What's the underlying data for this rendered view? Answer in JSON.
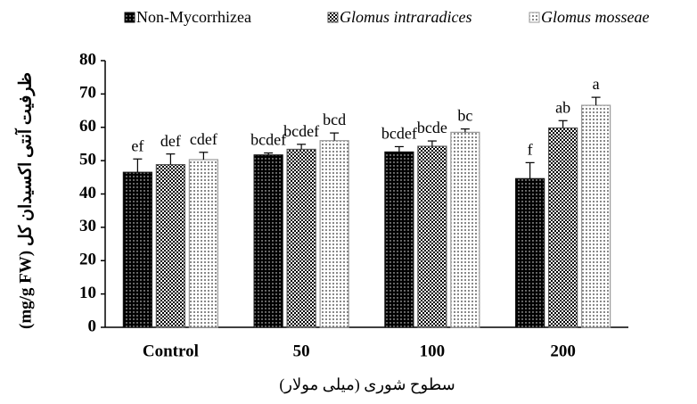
{
  "chart_data": {
    "type": "bar",
    "ylabel": "ظرفیت آنتی اکسیدان کل (mg/g FW)",
    "xlabel": "سطوح شوری (میلی مولار)",
    "categories": [
      "Control",
      "50",
      "100",
      "200"
    ],
    "series": [
      {
        "name": "Non-Mycorrhizea",
        "color": "#111111",
        "values": [
          46.5,
          51.7,
          52.6,
          44.6
        ],
        "errors": [
          4.0,
          0.6,
          1.6,
          4.8
        ],
        "letters": [
          "ef",
          "bcdef",
          "bcdef",
          "f"
        ]
      },
      {
        "name": "Glomus intraradices",
        "color": "#555555",
        "values": [
          48.8,
          53.4,
          54.3,
          59.8
        ],
        "errors": [
          3.2,
          1.5,
          1.6,
          2.2
        ],
        "letters": [
          "def",
          "bcdef",
          "bcde",
          "ab"
        ]
      },
      {
        "name": "Glomus mosseae",
        "color": "#999999",
        "values": [
          50.3,
          56.0,
          58.5,
          66.6
        ],
        "errors": [
          2.2,
          2.3,
          1.0,
          2.4
        ],
        "letters": [
          "cdef",
          "bcd",
          "bc",
          "a"
        ]
      }
    ],
    "ylim": [
      0,
      80
    ],
    "yticks": [
      0,
      10,
      20,
      30,
      40,
      50,
      60,
      70,
      80
    ]
  }
}
